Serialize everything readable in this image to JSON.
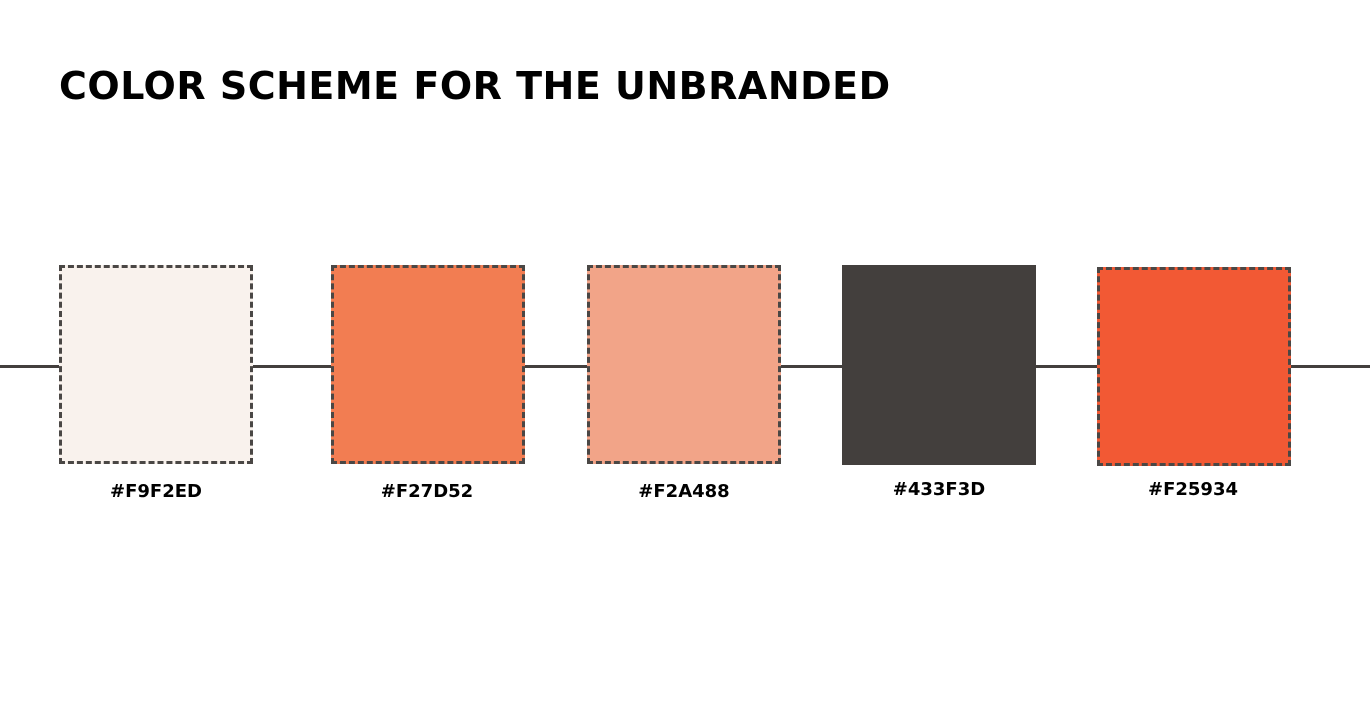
{
  "title": "COLOR SCHEME FOR THE UNBRANDED",
  "line_color": "#433F3D",
  "swatches": [
    {
      "label": "#F9F2ED",
      "color": "#F9F2ED",
      "outline": "dashed"
    },
    {
      "label": "#F27D52",
      "color": "#F27D52",
      "outline": "dashed"
    },
    {
      "label": "#F2A488",
      "color": "#F2A488",
      "outline": "dashed"
    },
    {
      "label": "#433F3D",
      "color": "#433F3D",
      "outline": "none"
    },
    {
      "label": "#F25934",
      "color": "#F25934",
      "outline": "dashed"
    }
  ]
}
